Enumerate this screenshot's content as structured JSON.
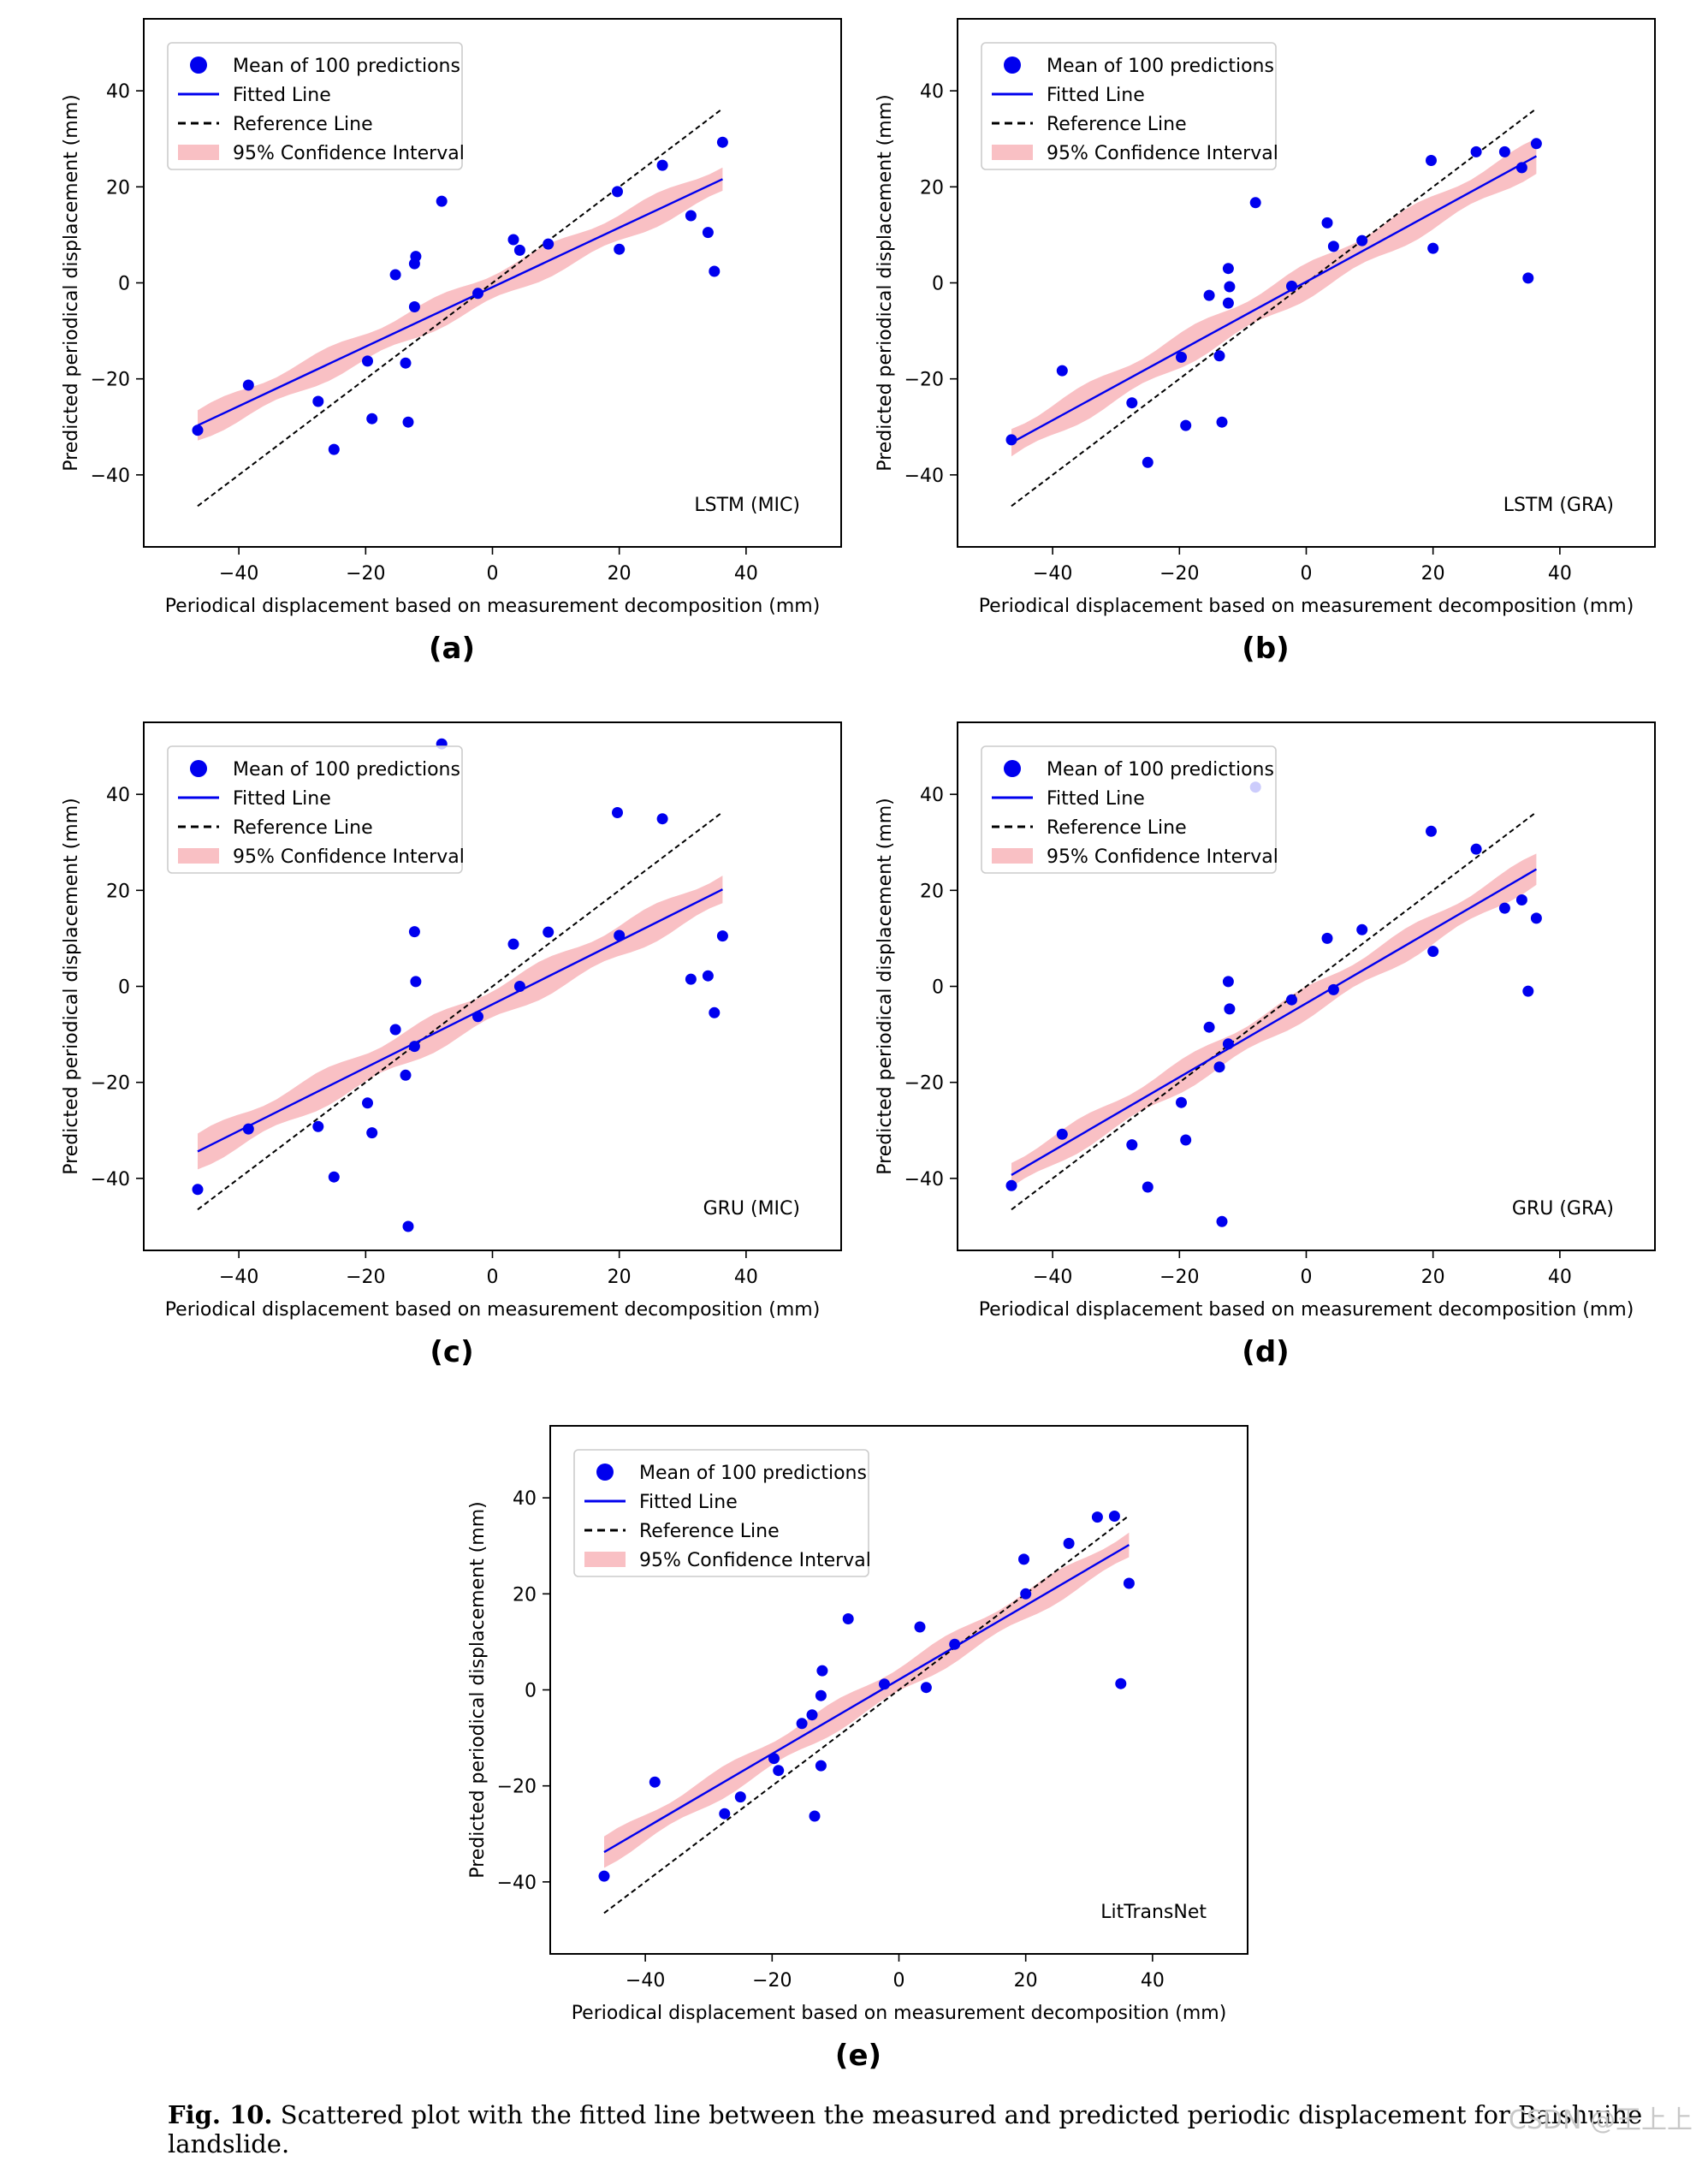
{
  "chart_data": [
    {
      "type": "scatter",
      "panel": "(a)",
      "model_label": "LSTM (MIC)",
      "xlabel": "Periodical displacement based on measurement decomposition (mm)",
      "ylabel": "Predicted periodical displacement (mm)",
      "xlim": [
        -55,
        55
      ],
      "ylim": [
        -55,
        55
      ],
      "xticks": [
        -40,
        -20,
        0,
        20,
        40
      ],
      "yticks": [
        -40,
        -20,
        0,
        20,
        40
      ],
      "legend": [
        "Mean of 100 predictions",
        "Fitted Line",
        "Reference Line",
        "95% Confidence Interval"
      ],
      "points": [
        [
          -46.5,
          -30.7
        ],
        [
          -38.5,
          -21.3
        ],
        [
          -27.5,
          -24.7
        ],
        [
          -25,
          -34.7
        ],
        [
          -19.7,
          -16.3
        ],
        [
          -19,
          -28.3
        ],
        [
          -15.3,
          1.7
        ],
        [
          -13.7,
          -16.7
        ],
        [
          -13.3,
          -29
        ],
        [
          -12.3,
          4
        ],
        [
          -12.1,
          5.5
        ],
        [
          -12.3,
          -5
        ],
        [
          -8,
          17
        ],
        [
          -2.3,
          -2.2
        ],
        [
          3.3,
          9
        ],
        [
          4.3,
          6.8
        ],
        [
          8.8,
          8.1
        ],
        [
          19.7,
          19
        ],
        [
          20,
          7
        ],
        [
          26.8,
          24.5
        ],
        [
          31.3,
          14
        ],
        [
          34,
          10.5
        ],
        [
          35,
          2.4
        ],
        [
          36.3,
          29.3
        ]
      ],
      "fitted": [
        [
          -46.5,
          -29.7
        ],
        [
          36.3,
          21.6
        ]
      ],
      "reference": [
        [
          -46.5,
          -46.5
        ],
        [
          36.3,
          36.3
        ]
      ],
      "ci_half_width": 2.3
    },
    {
      "type": "scatter",
      "panel": "(b)",
      "model_label": "LSTM (GRA)",
      "xlabel": "Periodical displacement based on measurement decomposition (mm)",
      "ylabel": "Predicted periodical displacement (mm)",
      "xlim": [
        -55,
        55
      ],
      "ylim": [
        -55,
        55
      ],
      "xticks": [
        -40,
        -20,
        0,
        20,
        40
      ],
      "yticks": [
        -40,
        -20,
        0,
        20,
        40
      ],
      "legend": [
        "Mean of 100 predictions",
        "Fitted Line",
        "Reference Line",
        "95% Confidence Interval"
      ],
      "points": [
        [
          -46.5,
          -32.7
        ],
        [
          -38.5,
          -18.3
        ],
        [
          -27.5,
          -25
        ],
        [
          -25,
          -37.4
        ],
        [
          -19.7,
          -15.5
        ],
        [
          -19,
          -29.7
        ],
        [
          -15.3,
          -2.6
        ],
        [
          -13.7,
          -15.2
        ],
        [
          -13.3,
          -29
        ],
        [
          -12.3,
          3
        ],
        [
          -12.1,
          -0.8
        ],
        [
          -12.3,
          -4.2
        ],
        [
          -8,
          16.7
        ],
        [
          -2.3,
          -0.7
        ],
        [
          3.3,
          12.5
        ],
        [
          4.3,
          7.6
        ],
        [
          8.8,
          8.8
        ],
        [
          19.7,
          25.5
        ],
        [
          20,
          7.2
        ],
        [
          26.8,
          27.3
        ],
        [
          31.3,
          27.3
        ],
        [
          34,
          24
        ],
        [
          35,
          1
        ],
        [
          36.3,
          29
        ]
      ],
      "fitted": [
        [
          -46.5,
          -33.3
        ],
        [
          36.3,
          26.4
        ]
      ],
      "reference": [
        [
          -46.5,
          -46.5
        ],
        [
          36.3,
          36.3
        ]
      ],
      "ci_half_width": 2.5
    },
    {
      "type": "scatter",
      "panel": "(c)",
      "model_label": "GRU (MIC)",
      "xlabel": "Periodical displacement based on measurement decomposition (mm)",
      "ylabel": "Predicted periodical displacement (mm)",
      "xlim": [
        -55,
        55
      ],
      "ylim": [
        -55,
        55
      ],
      "xticks": [
        -40,
        -20,
        0,
        20,
        40
      ],
      "yticks": [
        -40,
        -20,
        0,
        20,
        40
      ],
      "legend": [
        "Mean of 100 predictions",
        "Fitted Line",
        "Reference Line",
        "95% Confidence Interval"
      ],
      "points": [
        [
          -46.5,
          -42.3
        ],
        [
          -38.5,
          -29.7
        ],
        [
          -27.5,
          -29.2
        ],
        [
          -25,
          -39.7
        ],
        [
          -19.7,
          -24.3
        ],
        [
          -19,
          -30.5
        ],
        [
          -15.3,
          -9
        ],
        [
          -13.7,
          -18.5
        ],
        [
          -13.3,
          -50
        ],
        [
          -12.3,
          11.4
        ],
        [
          -12.1,
          1
        ],
        [
          -12.3,
          -12.5
        ],
        [
          -8,
          50.5
        ],
        [
          -2.3,
          -6.3
        ],
        [
          3.3,
          8.8
        ],
        [
          4.3,
          0
        ],
        [
          8.8,
          11.3
        ],
        [
          19.7,
          36.2
        ],
        [
          20,
          10.6
        ],
        [
          26.8,
          34.9
        ],
        [
          31.3,
          1.5
        ],
        [
          34,
          2.2
        ],
        [
          35,
          -5.5
        ],
        [
          36.3,
          10.5
        ]
      ],
      "fitted": [
        [
          -46.5,
          -34.4
        ],
        [
          36.3,
          20.2
        ]
      ],
      "reference": [
        [
          -46.5,
          -46.5
        ],
        [
          36.3,
          36.3
        ]
      ],
      "ci_half_width": 2.6
    },
    {
      "type": "scatter",
      "panel": "(d)",
      "model_label": "GRU (GRA)",
      "xlabel": "Periodical displacement based on measurement decomposition (mm)",
      "ylabel": "Predicted periodical displacement (mm)",
      "xlim": [
        -55,
        55
      ],
      "ylim": [
        -55,
        55
      ],
      "xticks": [
        -40,
        -20,
        0,
        20,
        40
      ],
      "yticks": [
        -40,
        -20,
        0,
        20,
        40
      ],
      "legend": [
        "Mean of 100 predictions",
        "Fitted Line",
        "Reference Line",
        "95% Confidence Interval"
      ],
      "points": [
        [
          -46.5,
          -41.5
        ],
        [
          -38.5,
          -30.8
        ],
        [
          -27.5,
          -33
        ],
        [
          -25,
          -41.8
        ],
        [
          -19.7,
          -24.2
        ],
        [
          -19,
          -32
        ],
        [
          -15.3,
          -8.5
        ],
        [
          -13.7,
          -16.8
        ],
        [
          -13.3,
          -49
        ],
        [
          -12.3,
          1
        ],
        [
          -12.1,
          -4.7
        ],
        [
          -12.3,
          -12
        ],
        [
          -8,
          41.5
        ],
        [
          -2.3,
          -2.8
        ],
        [
          3.3,
          10
        ],
        [
          4.3,
          -0.7
        ],
        [
          8.8,
          11.8
        ],
        [
          19.7,
          32.3
        ],
        [
          20,
          7.3
        ],
        [
          26.8,
          28.6
        ],
        [
          31.3,
          16.3
        ],
        [
          34,
          18
        ],
        [
          35,
          -1
        ],
        [
          36.3,
          14.2
        ]
      ],
      "fitted": [
        [
          -46.5,
          -39.3
        ],
        [
          36.3,
          24.4
        ]
      ],
      "reference": [
        [
          -46.5,
          -46.5
        ],
        [
          36.3,
          36.3
        ]
      ],
      "ci_half_width": 2.3
    },
    {
      "type": "scatter",
      "panel": "(e)",
      "model_label": "LitTransNet",
      "xlabel": "Periodical displacement based on measurement decomposition (mm)",
      "ylabel": "Predicted periodical displacement (mm)",
      "xlim": [
        -55,
        55
      ],
      "ylim": [
        -55,
        55
      ],
      "xticks": [
        -40,
        -20,
        0,
        20,
        40
      ],
      "yticks": [
        -40,
        -20,
        0,
        20,
        40
      ],
      "legend": [
        "Mean of 100 predictions",
        "Fitted Line",
        "Reference Line",
        "95% Confidence Interval"
      ],
      "points": [
        [
          -46.5,
          -38.8
        ],
        [
          -38.5,
          -19.2
        ],
        [
          -27.5,
          -25.8
        ],
        [
          -25,
          -22.3
        ],
        [
          -19.7,
          -14.3
        ],
        [
          -19,
          -16.8
        ],
        [
          -15.3,
          -7
        ],
        [
          -13.7,
          -5.2
        ],
        [
          -13.3,
          -26.3
        ],
        [
          -12.3,
          -15.8
        ],
        [
          -12.1,
          4
        ],
        [
          -12.3,
          -1.2
        ],
        [
          -8,
          14.8
        ],
        [
          -2.3,
          1.2
        ],
        [
          3.3,
          13.1
        ],
        [
          4.3,
          0.5
        ],
        [
          8.8,
          9.5
        ],
        [
          19.7,
          27.2
        ],
        [
          20,
          20
        ],
        [
          26.8,
          30.5
        ],
        [
          31.3,
          36
        ],
        [
          34,
          36.2
        ],
        [
          35,
          1.3
        ],
        [
          36.3,
          22.2
        ]
      ],
      "fitted": [
        [
          -46.5,
          -33.8
        ],
        [
          36.3,
          30.2
        ]
      ],
      "reference": [
        [
          -46.5,
          -46.5
        ],
        [
          36.3,
          36.3
        ]
      ],
      "ci_half_width": 2.2
    }
  ],
  "colors": {
    "point": "#0000ee",
    "fitted": "#0000ee",
    "reference": "#000000",
    "ci": "#f9c0c4",
    "faded_point": "#c7c7f5"
  },
  "caption": {
    "fig": "Fig. 10.",
    "text": "Scattered plot with the fitted line between the measured and predicted periodic displacement for Baishuihe landslide."
  },
  "watermark": "CSDN @王上上"
}
